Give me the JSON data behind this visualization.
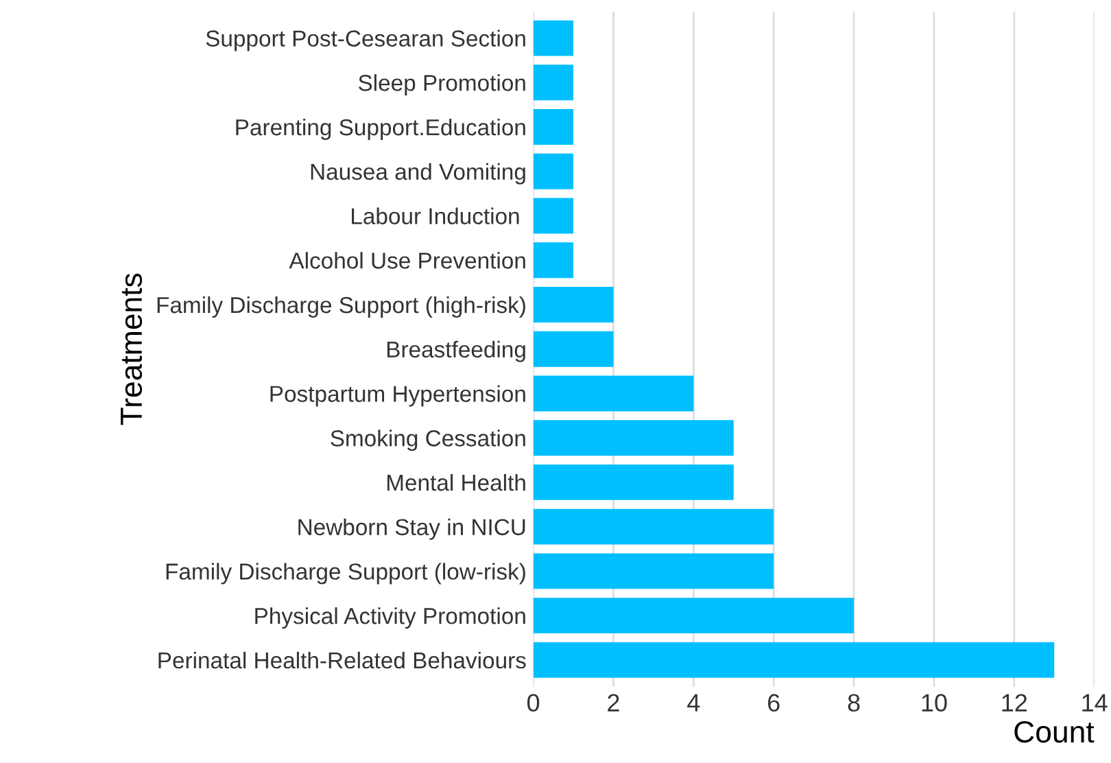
{
  "chart_data": {
    "type": "bar",
    "orientation": "horizontal",
    "xlabel": "Count",
    "ylabel": "Treatments",
    "categories": [
      "Support Post-Cesearan Section",
      "Sleep Promotion",
      "Parenting Support.Education",
      "Nausea and Vomiting",
      "Labour Induction ",
      "Alcohol Use Prevention",
      "Family Discharge Support (high-risk)",
      "Breastfeeding",
      "Postpartum Hypertension",
      "Smoking Cessation",
      "Mental Health",
      "Newborn Stay in NICU",
      "Family Discharge Support (low-risk)",
      "Physical Activity Promotion",
      "Perinatal Health-Related Behaviours"
    ],
    "values": [
      1,
      1,
      1,
      1,
      1,
      1,
      2,
      2,
      4,
      5,
      5,
      6,
      6,
      8,
      13
    ],
    "color": "#00bfff",
    "xlim": [
      0,
      14
    ],
    "xticks": [
      0,
      2,
      4,
      6,
      8,
      10,
      12,
      14
    ],
    "grid": "x"
  }
}
